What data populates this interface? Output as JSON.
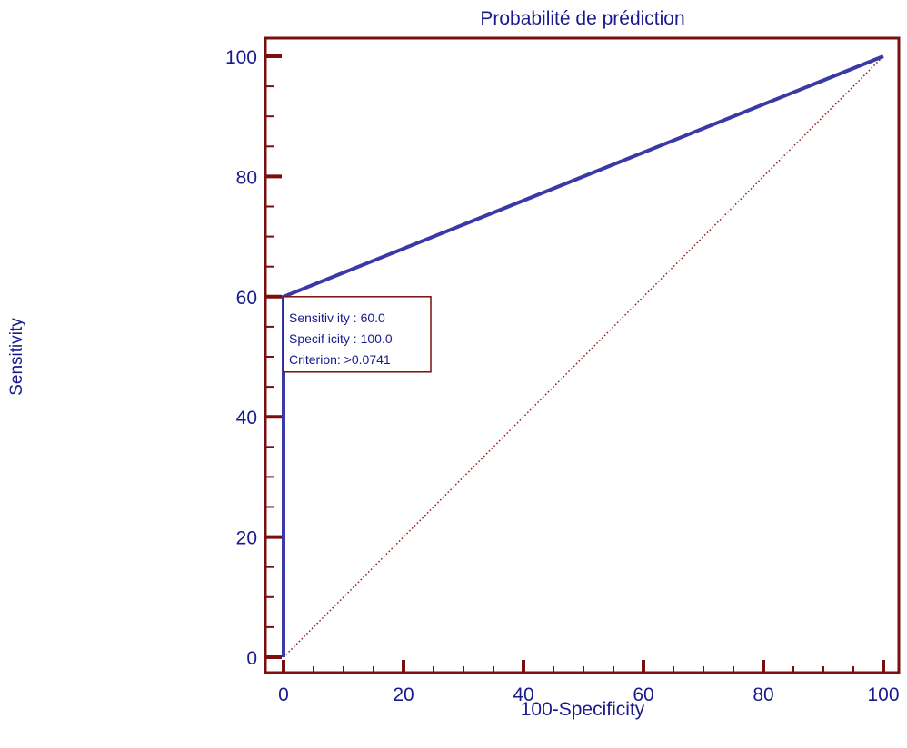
{
  "chart_data": {
    "type": "line",
    "title": "Probabilité de prédiction",
    "xlabel": "100-Specificity",
    "ylabel": "Sensitivity",
    "xlim": [
      0,
      100
    ],
    "ylim": [
      0,
      100
    ],
    "x_ticks": [
      "0",
      "20",
      "40",
      "60",
      "80",
      "100"
    ],
    "y_ticks": [
      "0",
      "20",
      "40",
      "60",
      "80",
      "100"
    ],
    "grid": false,
    "series": [
      {
        "role": "roc-curve",
        "style": "solid",
        "color": "#3a3aa6",
        "points": [
          [
            0,
            0
          ],
          [
            0,
            60
          ],
          [
            100,
            100
          ]
        ]
      },
      {
        "role": "reference-diagonal",
        "style": "dotted",
        "color": "#8b1a1a",
        "points": [
          [
            0,
            0
          ],
          [
            100,
            100
          ]
        ]
      }
    ],
    "annotation": {
      "point": [
        0,
        60
      ],
      "lines": [
        "Sensitiv ity : 60.0",
        "Specif icity : 100.0",
        "Criterion: >0.0741"
      ]
    },
    "colors": {
      "frame": "#7a0f0f",
      "text": "#1a1a8c",
      "roc": "#3a3aa6",
      "diagonal": "#8b1a1a"
    }
  }
}
